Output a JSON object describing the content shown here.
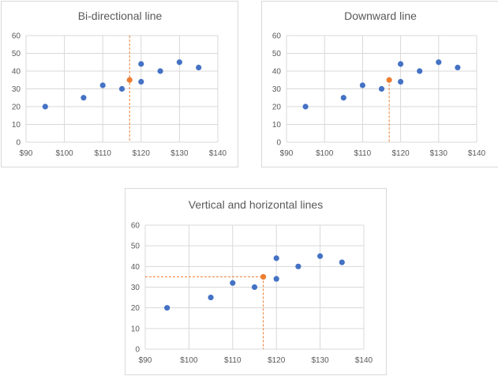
{
  "chart_data": [
    {
      "type": "scatter",
      "title": "Bi-directional line",
      "guide": "bidirectional",
      "x": [
        95,
        105,
        110,
        115,
        120,
        120,
        125,
        130,
        135
      ],
      "y": [
        20,
        25,
        32,
        30,
        44,
        34,
        40,
        45,
        42
      ],
      "highlight": {
        "x": 117,
        "y": 35
      },
      "xlim": [
        90,
        140
      ],
      "ylim": [
        0,
        60
      ],
      "xticks": [
        90,
        100,
        110,
        120,
        130,
        140
      ],
      "xtick_labels": [
        "$90",
        "$100",
        "$110",
        "$120",
        "$130",
        "$140"
      ],
      "yticks": [
        0,
        10,
        20,
        30,
        40,
        50,
        60
      ],
      "ytick_labels": [
        "0",
        "10",
        "20",
        "30",
        "40",
        "50",
        "60"
      ],
      "xlabel": "",
      "ylabel": "",
      "grid": true,
      "colors": {
        "series": "#4472c4",
        "highlight": "#ed7d31",
        "guide": "#ed7d31",
        "grid": "#d9d9d9",
        "text": "#595959"
      }
    },
    {
      "type": "scatter",
      "title": "Downward line",
      "guide": "downward",
      "x": [
        95,
        105,
        110,
        115,
        120,
        120,
        125,
        130,
        135
      ],
      "y": [
        20,
        25,
        32,
        30,
        44,
        34,
        40,
        45,
        42
      ],
      "highlight": {
        "x": 117,
        "y": 35
      },
      "xlim": [
        90,
        140
      ],
      "ylim": [
        0,
        60
      ],
      "xticks": [
        90,
        100,
        110,
        120,
        130,
        140
      ],
      "xtick_labels": [
        "$90",
        "$100",
        "$110",
        "$120",
        "$130",
        "$140"
      ],
      "yticks": [
        0,
        10,
        20,
        30,
        40,
        50,
        60
      ],
      "ytick_labels": [
        "0",
        "10",
        "20",
        "30",
        "40",
        "50",
        "60"
      ],
      "xlabel": "",
      "ylabel": "",
      "grid": true,
      "colors": {
        "series": "#4472c4",
        "highlight": "#ed7d31",
        "guide": "#ed7d31",
        "grid": "#d9d9d9",
        "text": "#595959"
      }
    },
    {
      "type": "scatter",
      "title": "Vertical and horizontal lines",
      "guide": "cross",
      "x": [
        95,
        105,
        110,
        115,
        120,
        120,
        125,
        130,
        135
      ],
      "y": [
        20,
        25,
        32,
        30,
        44,
        34,
        40,
        45,
        42
      ],
      "highlight": {
        "x": 117,
        "y": 35
      },
      "xlim": [
        90,
        140
      ],
      "ylim": [
        0,
        60
      ],
      "xticks": [
        90,
        100,
        110,
        120,
        130,
        140
      ],
      "xtick_labels": [
        "$90",
        "$100",
        "$110",
        "$120",
        "$130",
        "$140"
      ],
      "yticks": [
        0,
        10,
        20,
        30,
        40,
        50,
        60
      ],
      "ytick_labels": [
        "0",
        "10",
        "20",
        "30",
        "40",
        "50",
        "60"
      ],
      "xlabel": "",
      "ylabel": "",
      "grid": true,
      "colors": {
        "series": "#4472c4",
        "highlight": "#ed7d31",
        "guide": "#ed7d31",
        "grid": "#d9d9d9",
        "text": "#595959"
      }
    }
  ]
}
